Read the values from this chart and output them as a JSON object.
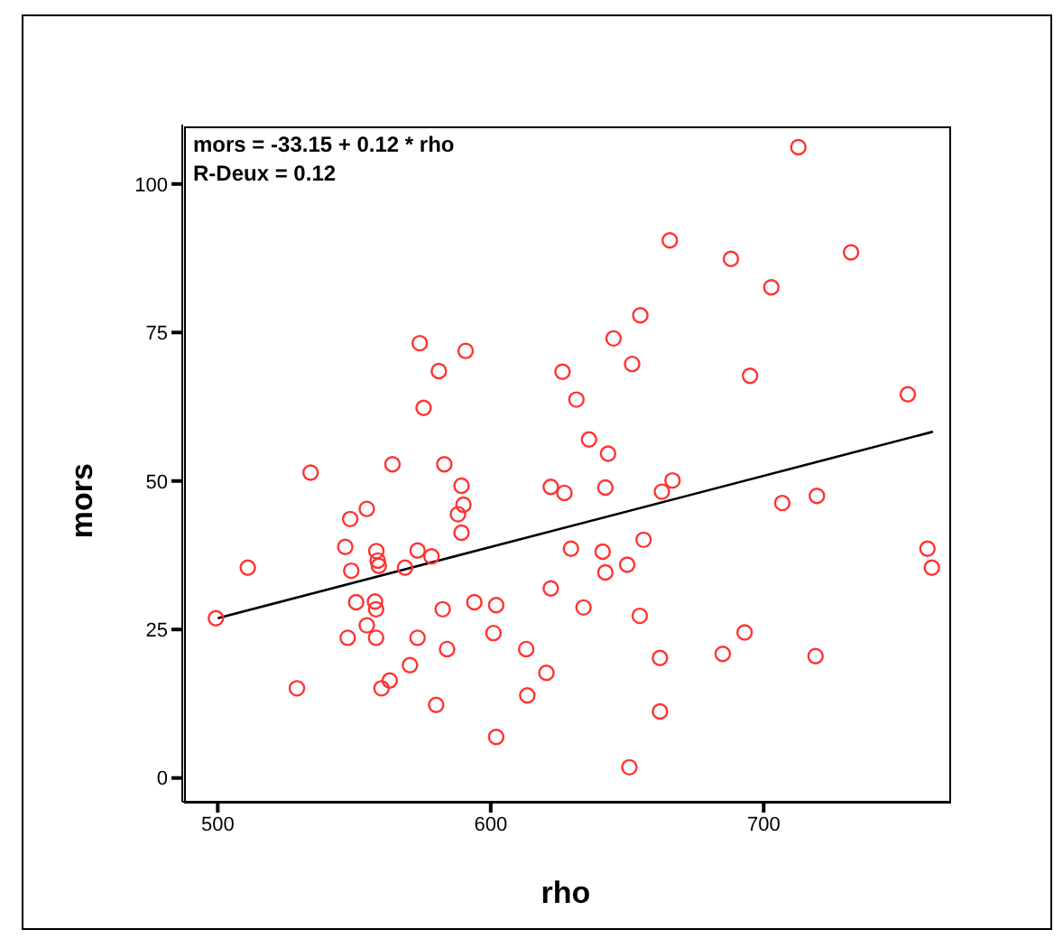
{
  "chart_data": {
    "type": "scatter",
    "xlabel": "rho",
    "ylabel": "mors",
    "annotations": [
      "mors = -33.15 + 0.12 * rho",
      "R-Deux = 0.12"
    ],
    "xlim": [
      487,
      768
    ],
    "ylim": [
      -4,
      110
    ],
    "xticks": [
      500,
      600,
      700
    ],
    "yticks": [
      0,
      25,
      50,
      75,
      100
    ],
    "marker": "circle",
    "series": [
      {
        "color": "#ff3333",
        "x": [
          499.3,
          511,
          534,
          564,
          583,
          529,
          548.5,
          554.6,
          546.7,
          548.9,
          558.1,
          558.6,
          559,
          568.6,
          573.2,
          578.3,
          589.3,
          590,
          588,
          589.3,
          622,
          627,
          550.7,
          557.6,
          558,
          554.6,
          547.6,
          558,
          573.2,
          582.4,
          594,
          602,
          601,
          584,
          613,
          570.4,
          563,
          560,
          580,
          613.4,
          620.4,
          622,
          602,
          636,
          643,
          642,
          666.6,
          662.7,
          706.8,
          719.5,
          629.4,
          641,
          656,
          642,
          650,
          634,
          654.6,
          760,
          761.6,
          693,
          685,
          719,
          662,
          662,
          650.8,
          712.7,
          665.6,
          688,
          732,
          702.8,
          654.8,
          645,
          651.8,
          626.3,
          631.4,
          695,
          752.8,
          574,
          590.8,
          581,
          575.4
        ],
        "values": [
          26.9,
          35.4,
          51.4,
          52.8,
          52.8,
          15.1,
          43.6,
          45.3,
          38.9,
          34.9,
          38.2,
          36.6,
          35.7,
          35.4,
          38.3,
          37.3,
          49.2,
          46,
          44.4,
          41.3,
          49,
          48,
          29.6,
          29.7,
          28.4,
          25.7,
          23.6,
          23.6,
          23.6,
          28.4,
          29.6,
          29.1,
          24.4,
          21.7,
          21.7,
          19,
          16.4,
          15.1,
          12.3,
          13.9,
          17.7,
          31.9,
          6.9,
          57,
          54.6,
          48.9,
          50.1,
          48.2,
          46.3,
          47.5,
          38.6,
          38.1,
          40.1,
          34.6,
          35.9,
          28.7,
          27.3,
          38.6,
          35.4,
          24.5,
          20.9,
          20.5,
          20.2,
          11.2,
          1.8,
          106.2,
          90.5,
          87.4,
          88.5,
          82.6,
          77.9,
          74,
          69.7,
          68.4,
          63.7,
          67.7,
          64.6,
          73.2,
          71.9,
          68.5,
          62.3
        ]
      },
      {
        "type": "line",
        "marker": "none",
        "color": "#000000",
        "x": [
          500,
          762
        ],
        "values": [
          26.9,
          58.3
        ]
      }
    ]
  }
}
